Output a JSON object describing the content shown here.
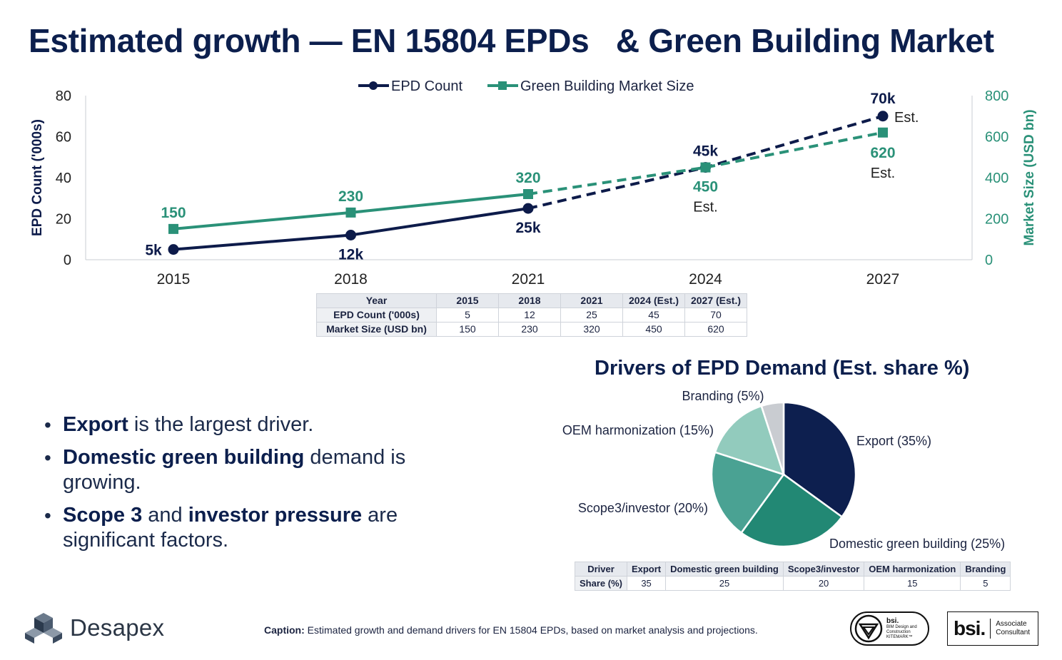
{
  "title": "Estimated growth — EN 15804 EPDs   & Green Building Market",
  "chart_data": [
    {
      "type": "line",
      "x": [
        "2015",
        "2018",
        "2021",
        "2024",
        "2027"
      ],
      "series": [
        {
          "name": "EPD Count",
          "axis": "left",
          "values": [
            5,
            12,
            25,
            45,
            70
          ],
          "estimated_from_index": 2,
          "color": "#0d1b4a",
          "labels": [
            "5k",
            "12k",
            "25k",
            "45k",
            "70k"
          ]
        },
        {
          "name": "Green Building Market Size",
          "axis": "right",
          "values": [
            150,
            230,
            320,
            450,
            620
          ],
          "estimated_from_index": 2,
          "color": "#2a9178",
          "labels": [
            "150",
            "230",
            "320",
            "450",
            "620"
          ]
        }
      ],
      "est_label": "Est.",
      "ylabel_left": "EPD Count ('000s)",
      "ylabel_right": "Market Size (USD bn)",
      "ylim_left": [
        0,
        80
      ],
      "ylim_right": [
        0,
        800
      ],
      "yticks_left": [
        0,
        20,
        40,
        60,
        80
      ],
      "yticks_right": [
        0,
        200,
        400,
        600,
        800
      ],
      "legend": "top-center"
    },
    {
      "type": "pie",
      "title": "Drivers of EPD Demand (Est. share %)",
      "slices": [
        {
          "label": "Export (35%)",
          "value": 35,
          "color": "#0d1f4f"
        },
        {
          "label": "Domestic green building (25%)",
          "value": 25,
          "color": "#228874"
        },
        {
          "label": "Scope3/investor (20%)",
          "value": 20,
          "color": "#4aa293"
        },
        {
          "label": "OEM harmonization (15%)",
          "value": 15,
          "color": "#92cbbd"
        },
        {
          "label": "Branding (5%)",
          "value": 5,
          "color": "#c9ccd1"
        }
      ]
    }
  ],
  "growth_table": {
    "headers": [
      "Year",
      "2015",
      "2018",
      "2021",
      "2024 (Est.)",
      "2027 (Est.)"
    ],
    "rows": [
      [
        "EPD Count ('000s)",
        "5",
        "12",
        "25",
        "45",
        "70"
      ],
      [
        "Market Size (USD bn)",
        "150",
        "230",
        "320",
        "450",
        "620"
      ]
    ]
  },
  "drivers_table": {
    "headers": [
      "Driver",
      "Export",
      "Domestic green building",
      "Scope3/investor",
      "OEM harmonization",
      "Branding"
    ],
    "rows": [
      [
        "Share (%)",
        "35",
        "25",
        "20",
        "15",
        "5"
      ]
    ]
  },
  "bullets": [
    {
      "bold": "Export",
      "rest": " is the largest driver."
    },
    {
      "bold": "Domestic green building",
      "rest": " demand is growing."
    },
    {
      "bold": "Scope 3",
      "mid": " and ",
      "bold2": "investor pressure",
      "rest": " are significant factors."
    }
  ],
  "footer": {
    "logo_text": "Desapex",
    "caption_label": "Caption:",
    "caption_text": " Estimated growth and demand drivers for EN 15804 EPDs, based on market analysis and projections.",
    "kitemark_brand": "bsi.",
    "kitemark_text": [
      "BIM Design and",
      "Construction",
      "KITEMARK™"
    ],
    "assoc_brand": "bsi.",
    "assoc_text": [
      "Associate",
      "Consultant"
    ]
  },
  "colors": {
    "navy": "#0d1b4a",
    "teal": "#2a9178",
    "axis": "#cfd3da"
  }
}
